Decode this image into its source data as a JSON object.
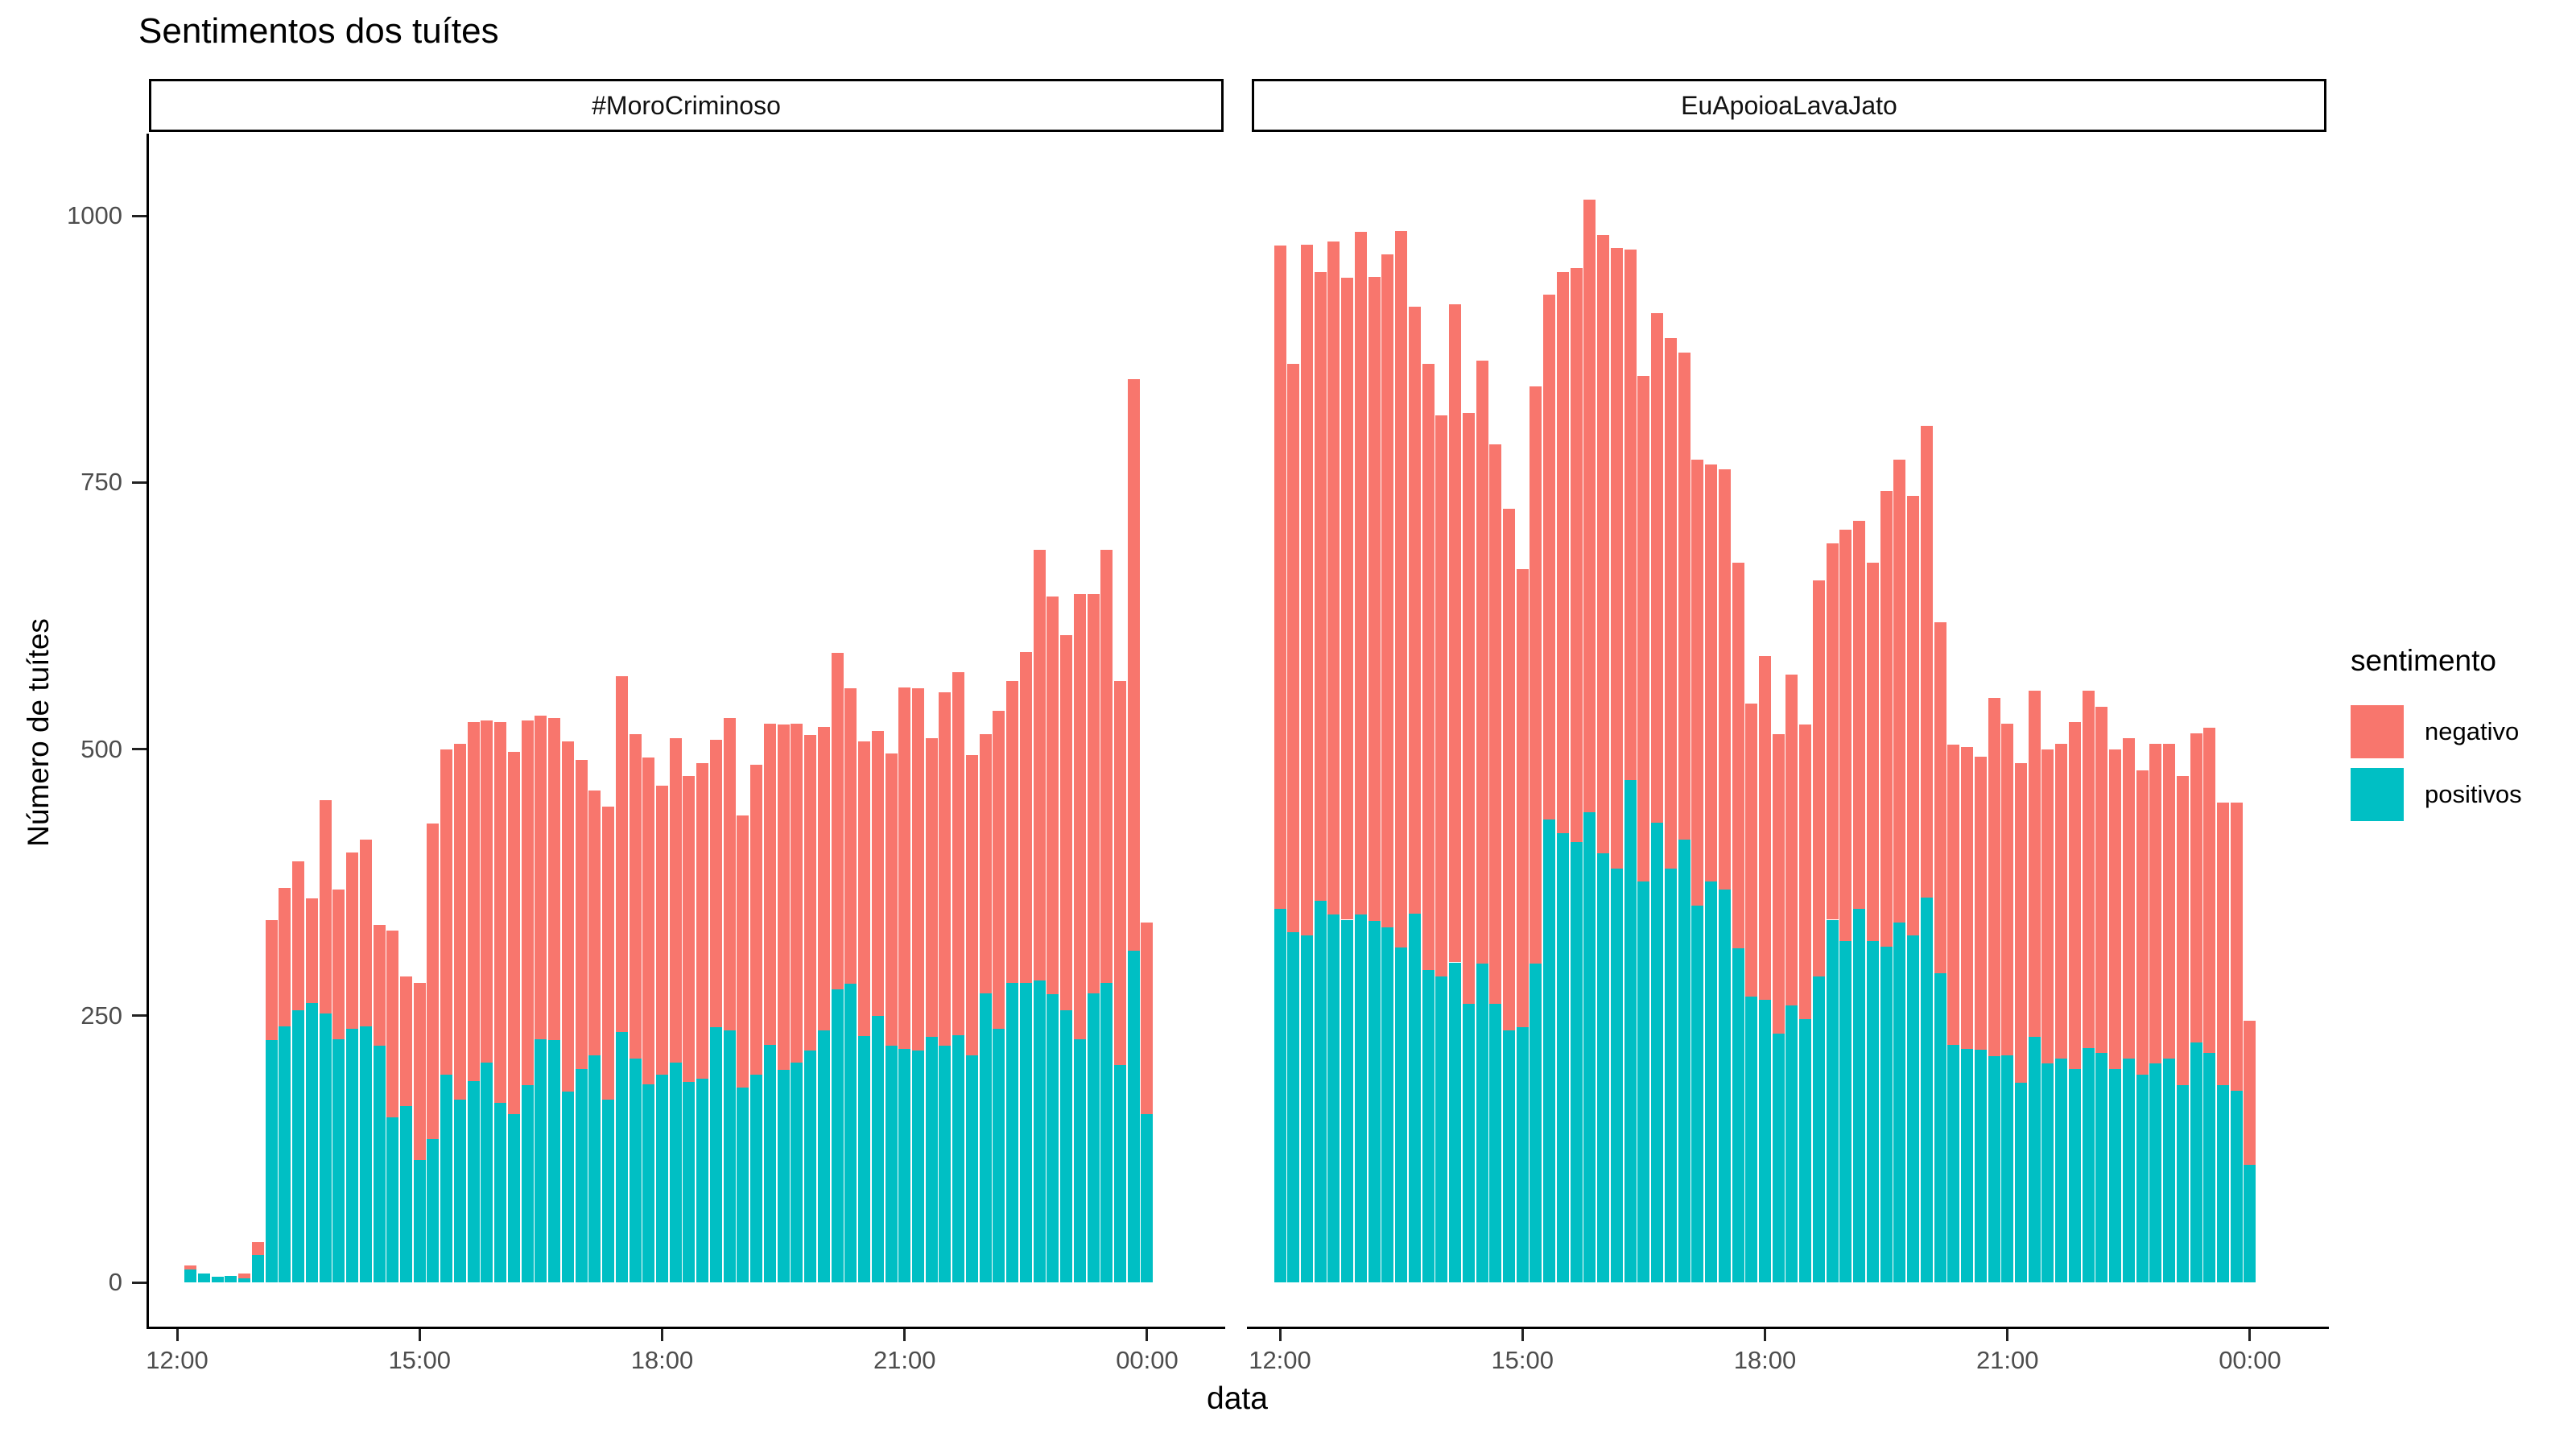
{
  "title": "Sentimentos dos tuítes",
  "axes": {
    "x_label": "data",
    "y_label": "Número de tuítes",
    "y_ticks": [
      0,
      250,
      500,
      750,
      1000
    ],
    "x_ticks": [
      "12:00",
      "15:00",
      "18:00",
      "21:00",
      "00:00"
    ]
  },
  "legend": {
    "title": "sentimento",
    "entries": [
      {
        "label": "negativo",
        "color": "#F8766D"
      },
      {
        "label": "positivos",
        "color": "#00BFC4"
      }
    ]
  },
  "colors": {
    "negative": "#F8766D",
    "positive": "#00BFC4",
    "axis_text": "#4d4d4d",
    "axis_line": "#000000",
    "background": "#ffffff"
  },
  "chart_data": {
    "type": "bar",
    "stacked": true,
    "bin_minutes": 10,
    "title": "Sentimentos dos tuítes",
    "xlabel": "data",
    "ylabel": "Número de tuítes",
    "ylim": [
      0,
      1000
    ],
    "grid": false,
    "legend_position": "right",
    "series_names": [
      "positivos",
      "negativo"
    ],
    "facets": [
      {
        "label": "#MoroCriminoso",
        "bars": [
          [
            "12:10",
            12,
            4
          ],
          [
            "12:20",
            8,
            0
          ],
          [
            "12:30",
            5,
            0
          ],
          [
            "12:40",
            6,
            0
          ],
          [
            "12:50",
            4,
            4
          ],
          [
            "13:00",
            26,
            12
          ],
          [
            "13:10",
            227,
            113
          ],
          [
            "13:20",
            240,
            130
          ],
          [
            "13:30",
            255,
            140
          ],
          [
            "13:40",
            262,
            98
          ],
          [
            "13:50",
            252,
            200
          ],
          [
            "14:00",
            228,
            140
          ],
          [
            "14:10",
            238,
            165
          ],
          [
            "14:20",
            240,
            175
          ],
          [
            "14:30",
            222,
            113
          ],
          [
            "14:40",
            155,
            175
          ],
          [
            "14:50",
            165,
            122
          ],
          [
            "15:00",
            115,
            166
          ],
          [
            "15:10",
            134,
            296
          ],
          [
            "15:20",
            195,
            305
          ],
          [
            "15:30",
            171,
            334
          ],
          [
            "15:40",
            189,
            336
          ],
          [
            "15:50",
            206,
            321
          ],
          [
            "16:00",
            168,
            357
          ],
          [
            "16:10",
            158,
            339
          ],
          [
            "16:20",
            185,
            342
          ],
          [
            "16:30",
            228,
            303
          ],
          [
            "16:40",
            227,
            302
          ],
          [
            "16:50",
            179,
            328
          ],
          [
            "17:00",
            200,
            290
          ],
          [
            "17:10",
            213,
            248
          ],
          [
            "17:20",
            171,
            275
          ],
          [
            "17:30",
            235,
            333
          ],
          [
            "17:40",
            210,
            304
          ],
          [
            "17:50",
            186,
            306
          ],
          [
            "18:00",
            195,
            271
          ],
          [
            "18:10",
            206,
            304
          ],
          [
            "18:20",
            188,
            287
          ],
          [
            "18:30",
            191,
            296
          ],
          [
            "18:40",
            239,
            270
          ],
          [
            "18:50",
            236,
            293
          ],
          [
            "19:00",
            183,
            255
          ],
          [
            "19:10",
            195,
            290
          ],
          [
            "19:20",
            223,
            301
          ],
          [
            "19:30",
            199,
            324
          ],
          [
            "19:40",
            206,
            318
          ],
          [
            "19:50",
            217,
            296
          ],
          [
            "20:00",
            236,
            285
          ],
          [
            "20:10",
            275,
            315
          ],
          [
            "20:20",
            280,
            277
          ],
          [
            "20:30",
            231,
            276
          ],
          [
            "20:40",
            250,
            267
          ],
          [
            "20:50",
            222,
            274
          ],
          [
            "21:00",
            219,
            339
          ],
          [
            "21:10",
            217,
            340
          ],
          [
            "21:20",
            230,
            280
          ],
          [
            "21:30",
            222,
            331
          ],
          [
            "21:40",
            232,
            340
          ],
          [
            "21:50",
            213,
            281
          ],
          [
            "22:00",
            271,
            243
          ],
          [
            "22:10",
            238,
            298
          ],
          [
            "22:20",
            281,
            283
          ],
          [
            "22:30",
            281,
            310
          ],
          [
            "22:40",
            283,
            404
          ],
          [
            "22:50",
            270,
            373
          ],
          [
            "23:00",
            255,
            352
          ],
          [
            "23:10",
            228,
            417
          ],
          [
            "23:20",
            271,
            374
          ],
          [
            "23:30",
            281,
            406
          ],
          [
            "23:40",
            204,
            360
          ],
          [
            "23:50",
            311,
            536
          ],
          [
            "00:00",
            158,
            179
          ]
        ]
      },
      {
        "label": "EuApoioaLavaJato",
        "bars": [
          [
            "12:00",
            350,
            622
          ],
          [
            "12:10",
            328,
            533
          ],
          [
            "12:20",
            325,
            648
          ],
          [
            "12:30",
            358,
            589
          ],
          [
            "12:40",
            345,
            631
          ],
          [
            "12:50",
            340,
            602
          ],
          [
            "13:00",
            345,
            640
          ],
          [
            "13:10",
            339,
            604
          ],
          [
            "13:20",
            333,
            631
          ],
          [
            "13:30",
            314,
            672
          ],
          [
            "13:40",
            346,
            569
          ],
          [
            "13:50",
            293,
            568
          ],
          [
            "14:00",
            287,
            526
          ],
          [
            "14:10",
            300,
            617
          ],
          [
            "14:20",
            261,
            554
          ],
          [
            "14:30",
            299,
            565
          ],
          [
            "14:40",
            261,
            525
          ],
          [
            "14:50",
            236,
            489
          ],
          [
            "15:00",
            239,
            430
          ],
          [
            "15:10",
            299,
            541
          ],
          [
            "15:20",
            434,
            492
          ],
          [
            "15:30",
            421,
            526
          ],
          [
            "15:40",
            413,
            538
          ],
          [
            "15:50",
            441,
            574
          ],
          [
            "16:00",
            402,
            580
          ],
          [
            "16:10",
            388,
            582
          ],
          [
            "16:20",
            471,
            497
          ],
          [
            "16:30",
            376,
            474
          ],
          [
            "16:40",
            431,
            478
          ],
          [
            "16:50",
            388,
            497
          ],
          [
            "17:00",
            415,
            457
          ],
          [
            "17:10",
            353,
            418
          ],
          [
            "17:20",
            376,
            391
          ],
          [
            "17:30",
            368,
            394
          ],
          [
            "17:40",
            313,
            362
          ],
          [
            "17:50",
            268,
            275
          ],
          [
            "18:00",
            265,
            322
          ],
          [
            "18:10",
            233,
            281
          ],
          [
            "18:20",
            260,
            310
          ],
          [
            "18:30",
            247,
            276
          ],
          [
            "18:40",
            287,
            371
          ],
          [
            "18:50",
            340,
            353
          ],
          [
            "19:00",
            320,
            386
          ],
          [
            "19:10",
            350,
            364
          ],
          [
            "19:20",
            320,
            355
          ],
          [
            "19:30",
            315,
            427
          ],
          [
            "19:40",
            337,
            434
          ],
          [
            "19:50",
            325,
            412
          ],
          [
            "20:00",
            361,
            442
          ],
          [
            "20:10",
            290,
            329
          ],
          [
            "20:20",
            223,
            281
          ],
          [
            "20:30",
            219,
            283
          ],
          [
            "20:40",
            218,
            275
          ],
          [
            "20:50",
            212,
            336
          ],
          [
            "21:00",
            213,
            311
          ],
          [
            "21:10",
            187,
            300
          ],
          [
            "21:20",
            230,
            325
          ],
          [
            "21:30",
            205,
            295
          ],
          [
            "21:40",
            210,
            295
          ],
          [
            "21:50",
            200,
            325
          ],
          [
            "22:00",
            220,
            335
          ],
          [
            "22:10",
            215,
            325
          ],
          [
            "22:20",
            200,
            300
          ],
          [
            "22:30",
            210,
            300
          ],
          [
            "22:40",
            195,
            285
          ],
          [
            "22:50",
            205,
            300
          ],
          [
            "23:00",
            210,
            295
          ],
          [
            "23:10",
            185,
            290
          ],
          [
            "23:20",
            225,
            290
          ],
          [
            "23:30",
            215,
            305
          ],
          [
            "23:40",
            185,
            265
          ],
          [
            "23:50",
            180,
            270
          ],
          [
            "00:00",
            110,
            135
          ]
        ]
      }
    ]
  }
}
